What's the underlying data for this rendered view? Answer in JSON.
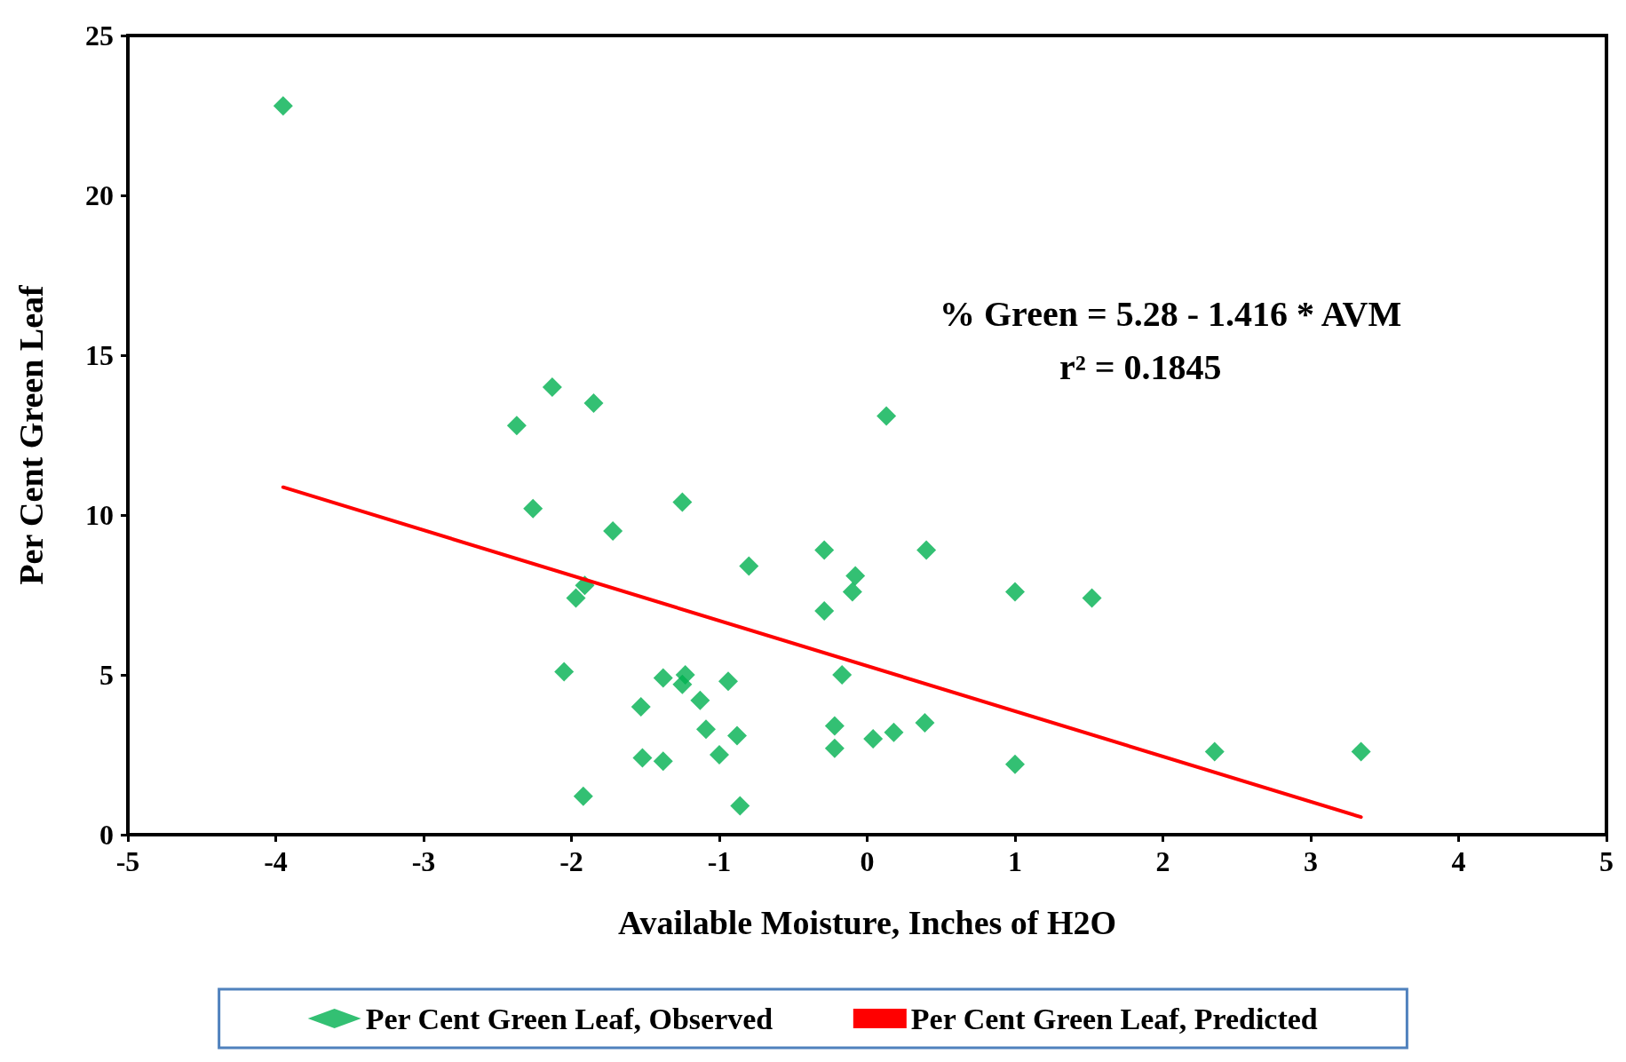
{
  "chart_data": {
    "type": "scatter",
    "xlabel": "Available Moisture, Inches of H2O",
    "ylabel": "Per Cent Green Leaf",
    "annotations": [
      "% Green = 5.28 - 1.416 * AVM",
      "r² = 0.1845"
    ],
    "xlim": [
      -5,
      5
    ],
    "xticks": [
      -5,
      -4,
      -3,
      -2,
      -1,
      0,
      1,
      2,
      3,
      4,
      5
    ],
    "ylim": [
      0,
      25
    ],
    "yticks": [
      0,
      5,
      10,
      15,
      20,
      25
    ],
    "grid": false,
    "legend": "bottom",
    "marker": "diamond",
    "series": [
      {
        "name": "Per Cent Green Leaf, Observed",
        "color": "#00b050",
        "x": [
          -3.95,
          -2.37,
          -2.13,
          -1.85,
          -2.26,
          -1.72,
          -1.25,
          0.13,
          -1.91,
          -1.97,
          -2.05,
          -0.8,
          -0.29,
          -0.08,
          -0.1,
          -0.29,
          0.4,
          1.0,
          1.52,
          -0.17,
          -1.38,
          -1.23,
          -1.25,
          -0.94,
          -1.13,
          -1.53,
          -1.09,
          -0.88,
          -1.0,
          -1.52,
          -1.38,
          -0.22,
          -0.22,
          0.04,
          0.18,
          0.39,
          1.0,
          2.35,
          3.34,
          -1.92,
          -0.86
        ],
        "values": [
          22.8,
          12.8,
          14.0,
          13.5,
          10.2,
          9.5,
          10.4,
          13.1,
          7.8,
          7.4,
          5.1,
          8.4,
          8.9,
          8.1,
          7.6,
          7.0,
          8.9,
          7.6,
          7.4,
          5.0,
          4.9,
          5.0,
          4.7,
          4.8,
          4.2,
          4.0,
          3.3,
          3.1,
          2.5,
          2.4,
          2.3,
          3.4,
          2.7,
          3.0,
          3.2,
          3.5,
          2.2,
          2.6,
          2.6,
          1.2,
          0.9
        ]
      },
      {
        "name": "Per Cent Green Leaf, Predicted",
        "type": "line",
        "color": "#ff0000",
        "marker": "none",
        "line_style": "solid",
        "x": [
          -3.95,
          3.34
        ],
        "values": [
          10.87,
          0.55
        ]
      }
    ]
  }
}
